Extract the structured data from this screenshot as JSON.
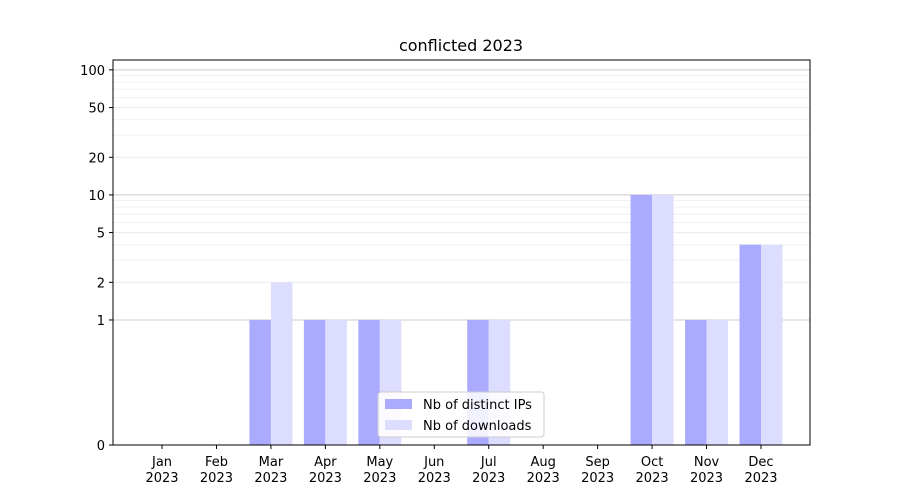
{
  "chart_data": {
    "type": "bar",
    "title": "conflicted 2023",
    "xlabel": "",
    "ylabel": "",
    "yscale": "symlog",
    "ylim": [
      0,
      120
    ],
    "ytick_labels": [
      "0",
      "1",
      "2",
      "5",
      "10",
      "20",
      "50",
      "100"
    ],
    "yticks": [
      0,
      1,
      2,
      5,
      10,
      20,
      50,
      100
    ],
    "categories": [
      [
        "Jan",
        "2023"
      ],
      [
        "Feb",
        "2023"
      ],
      [
        "Mar",
        "2023"
      ],
      [
        "Apr",
        "2023"
      ],
      [
        "May",
        "2023"
      ],
      [
        "Jun",
        "2023"
      ],
      [
        "Jul",
        "2023"
      ],
      [
        "Aug",
        "2023"
      ],
      [
        "Sep",
        "2023"
      ],
      [
        "Oct",
        "2023"
      ],
      [
        "Nov",
        "2023"
      ],
      [
        "Dec",
        "2023"
      ]
    ],
    "series": [
      {
        "name": "Nb of distinct IPs",
        "color": "#aaaaff",
        "values": [
          0,
          0,
          1,
          1,
          1,
          0,
          1,
          0,
          0,
          10,
          1,
          4
        ]
      },
      {
        "name": "Nb of downloads",
        "color": "#ddddff",
        "values": [
          0,
          0,
          2,
          1,
          1,
          0,
          1,
          0,
          0,
          10,
          1,
          4
        ]
      }
    ],
    "grid": true,
    "legend_position": "bottom-center"
  }
}
